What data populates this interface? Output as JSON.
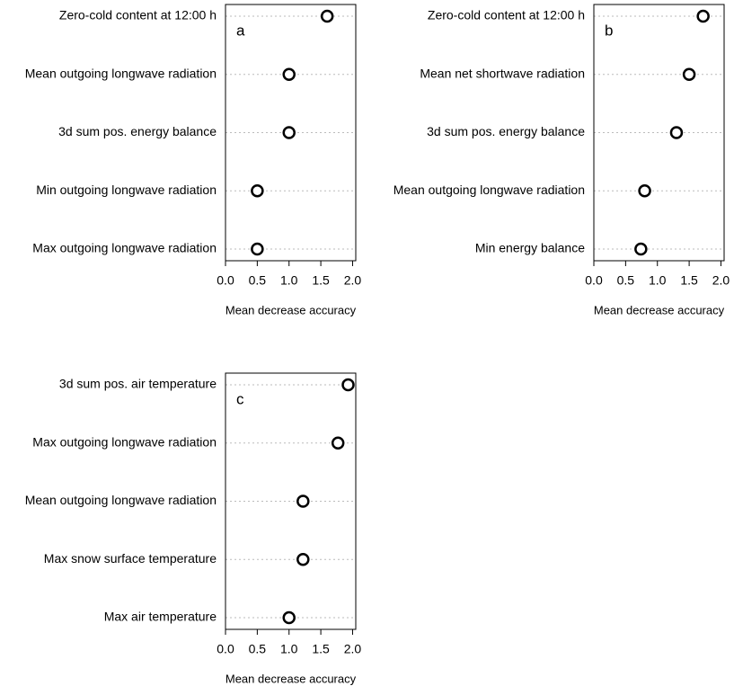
{
  "chart_data": [
    {
      "type": "dot",
      "label": "a",
      "categories": [
        "Zero-cold content at 12:00 h",
        "Mean outgoing longwave radiation",
        "3d sum pos. energy balance",
        "Min outgoing longwave radiation",
        "Max outgoing longwave radiation"
      ],
      "values": [
        1.6,
        1.0,
        1.0,
        0.5,
        0.5
      ],
      "xlim": [
        0,
        2.05
      ],
      "xticks": [
        {
          "value": 0,
          "label": "0.0"
        },
        0.5,
        {
          "value": 1,
          "label": "1.0"
        },
        1.5,
        {
          "value": 2,
          "label": "2.0"
        }
      ],
      "x_label": "Mean decrease accuracy",
      "grid": true,
      "color": "#000000"
    },
    {
      "type": "dot",
      "label": "b",
      "categories": [
        "Zero-cold content at 12:00 h",
        "Mean net shortwave radiation",
        "3d sum pos. energy balance",
        "Mean outgoing longwave radiation",
        "Min energy balance"
      ],
      "values": [
        1.72,
        1.5,
        1.3,
        0.8,
        0.74
      ],
      "xlim": [
        0,
        2.05
      ],
      "xticks": [
        {
          "value": 0,
          "label": "0.0"
        },
        0.5,
        {
          "value": 1,
          "label": "1.0"
        },
        1.5,
        {
          "value": 2,
          "label": "2.0"
        }
      ],
      "x_label": "Mean decrease accuracy",
      "grid": true,
      "color": "#000000"
    },
    {
      "type": "dot",
      "label": "c",
      "categories": [
        "3d sum pos. air temperature",
        "Max outgoing longwave radiation",
        "Mean outgoing longwave radiation",
        "Max snow surface temperature",
        "Max air temperature"
      ],
      "values": [
        1.93,
        1.77,
        1.22,
        1.22,
        1.0
      ],
      "xlim": [
        0,
        2.05
      ],
      "xticks": [
        {
          "value": 0,
          "label": "0.0"
        },
        0.5,
        {
          "value": 1,
          "label": "1.0"
        },
        1.5,
        {
          "value": 2,
          "label": "2.0"
        }
      ],
      "x_label": "Mean decrease accuracy",
      "grid": true,
      "color": "#000000"
    }
  ]
}
